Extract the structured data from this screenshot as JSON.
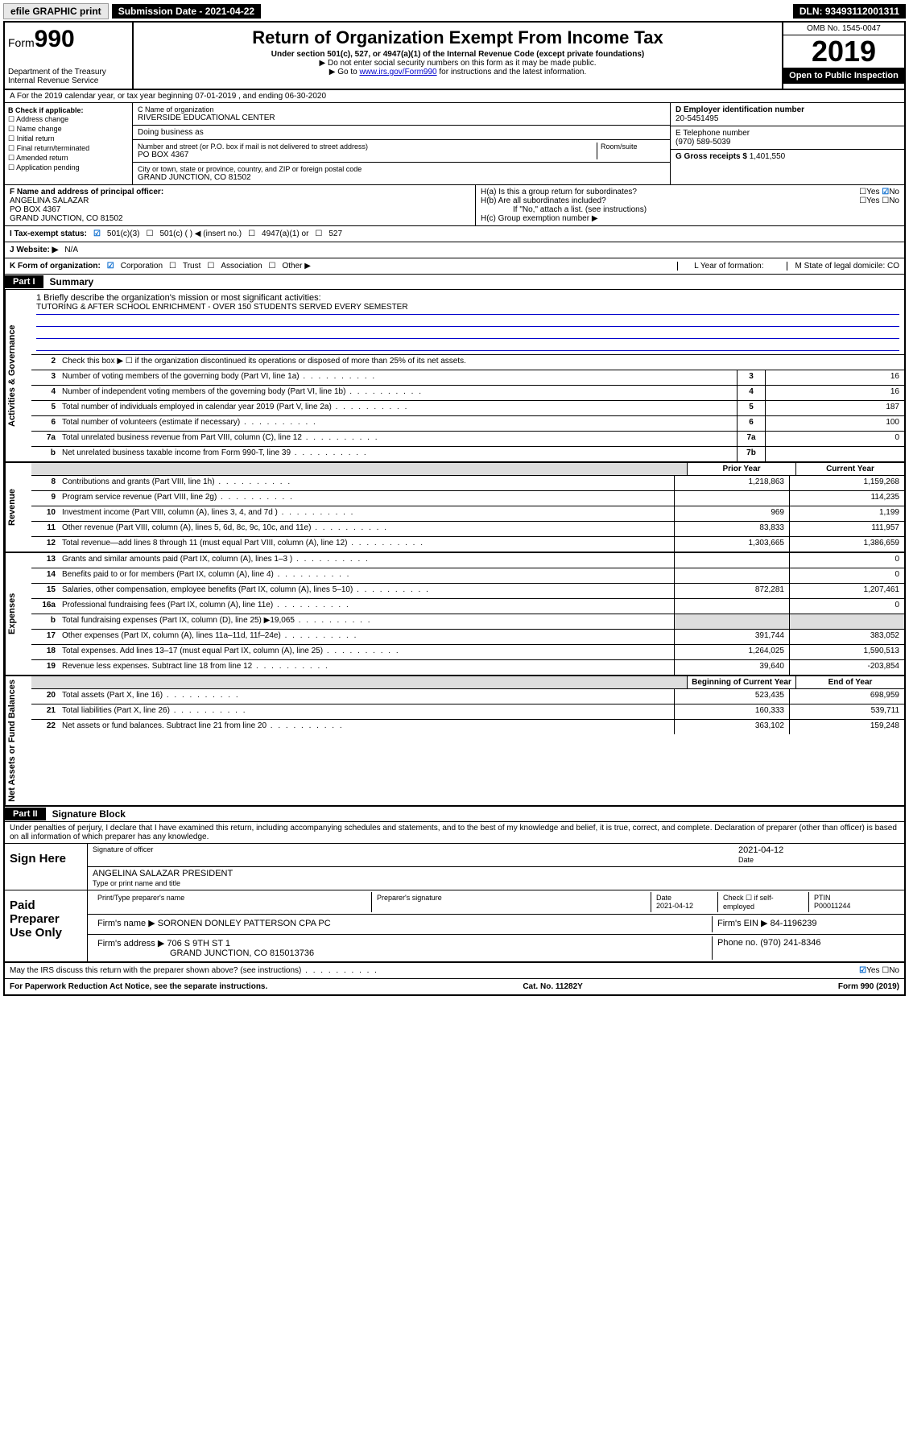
{
  "topbar": {
    "efile": "efile GRAPHIC print",
    "submission": "Submission Date - 2021-04-22",
    "dln": "DLN: 93493112001311"
  },
  "header": {
    "form": "Form",
    "formnum": "990",
    "dept": "Department of the Treasury\nInternal Revenue Service",
    "title": "Return of Organization Exempt From Income Tax",
    "sub1": "Under section 501(c), 527, or 4947(a)(1) of the Internal Revenue Code (except private foundations)",
    "sub2": "▶ Do not enter social security numbers on this form as it may be made public.",
    "sub3_pre": "▶ Go to ",
    "sub3_link": "www.irs.gov/Form990",
    "sub3_post": " for instructions and the latest information.",
    "omb": "OMB No. 1545-0047",
    "year": "2019",
    "open": "Open to Public Inspection"
  },
  "rowA": "A For the 2019 calendar year, or tax year beginning 07-01-2019   , and ending 06-30-2020",
  "boxB": {
    "title": "B Check if applicable:",
    "items": [
      "Address change",
      "Name change",
      "Initial return",
      "Final return/terminated",
      "Amended return",
      "Application pending"
    ]
  },
  "boxC": {
    "label_name": "C Name of organization",
    "name": "RIVERSIDE EDUCATIONAL CENTER",
    "dba": "Doing business as",
    "addr_label": "Number and street (or P.O. box if mail is not delivered to street address)",
    "room": "Room/suite",
    "addr": "PO BOX 4367",
    "city_label": "City or town, state or province, country, and ZIP or foreign postal code",
    "city": "GRAND JUNCTION, CO  81502"
  },
  "boxD": {
    "label": "D Employer identification number",
    "val": "20-5451495"
  },
  "boxE": {
    "label": "E Telephone number",
    "val": "(970) 589-5039"
  },
  "boxG": {
    "label": "G Gross receipts $",
    "val": "1,401,550"
  },
  "boxF": {
    "label": "F Name and address of principal officer:",
    "name": "ANGELINA SALAZAR",
    "addr": "PO BOX 4367",
    "city": "GRAND JUNCTION, CO  81502"
  },
  "boxH": {
    "a": "H(a)  Is this a group return for subordinates?",
    "b": "H(b)  Are all subordinates included?",
    "note": "If \"No,\" attach a list. (see instructions)",
    "c": "H(c)  Group exemption number ▶"
  },
  "rowI": {
    "label": "I   Tax-exempt status:",
    "opts": [
      "501(c)(3)",
      "501(c) (  ) ◀ (insert no.)",
      "4947(a)(1) or",
      "527"
    ]
  },
  "rowJ": {
    "label": "J   Website: ▶",
    "val": "N/A"
  },
  "rowK": {
    "label": "K Form of organization:",
    "opts": [
      "Corporation",
      "Trust",
      "Association",
      "Other ▶"
    ],
    "L": "L Year of formation:",
    "M": "M State of legal domicile: CO"
  },
  "part1": {
    "header": "Part I",
    "title": "Summary",
    "q1": "1  Briefly describe the organization's mission or most significant activities:",
    "mission": "TUTORING & AFTER SCHOOL ENRICHMENT - OVER 150 STUDENTS SERVED EVERY SEMESTER",
    "q2": "Check this box ▶ ☐  if the organization discontinued its operations or disposed of more than 25% of its net assets."
  },
  "sideLabels": {
    "gov": "Activities & Governance",
    "rev": "Revenue",
    "exp": "Expenses",
    "net": "Net Assets or Fund Balances"
  },
  "govLines": [
    {
      "n": "3",
      "d": "Number of voting members of the governing body (Part VI, line 1a)",
      "b": "3",
      "v": "16"
    },
    {
      "n": "4",
      "d": "Number of independent voting members of the governing body (Part VI, line 1b)",
      "b": "4",
      "v": "16"
    },
    {
      "n": "5",
      "d": "Total number of individuals employed in calendar year 2019 (Part V, line 2a)",
      "b": "5",
      "v": "187"
    },
    {
      "n": "6",
      "d": "Total number of volunteers (estimate if necessary)",
      "b": "6",
      "v": "100"
    },
    {
      "n": "7a",
      "d": "Total unrelated business revenue from Part VIII, column (C), line 12",
      "b": "7a",
      "v": "0"
    },
    {
      "n": "b",
      "d": "Net unrelated business taxable income from Form 990-T, line 39",
      "b": "7b",
      "v": ""
    }
  ],
  "colHeaders": {
    "prior": "Prior Year",
    "current": "Current Year"
  },
  "revLines": [
    {
      "n": "8",
      "d": "Contributions and grants (Part VIII, line 1h)",
      "p": "1,218,863",
      "c": "1,159,268"
    },
    {
      "n": "9",
      "d": "Program service revenue (Part VIII, line 2g)",
      "p": "",
      "c": "114,235"
    },
    {
      "n": "10",
      "d": "Investment income (Part VIII, column (A), lines 3, 4, and 7d )",
      "p": "969",
      "c": "1,199"
    },
    {
      "n": "11",
      "d": "Other revenue (Part VIII, column (A), lines 5, 6d, 8c, 9c, 10c, and 11e)",
      "p": "83,833",
      "c": "111,957"
    },
    {
      "n": "12",
      "d": "Total revenue—add lines 8 through 11 (must equal Part VIII, column (A), line 12)",
      "p": "1,303,665",
      "c": "1,386,659"
    }
  ],
  "expLines": [
    {
      "n": "13",
      "d": "Grants and similar amounts paid (Part IX, column (A), lines 1–3 )",
      "p": "",
      "c": "0"
    },
    {
      "n": "14",
      "d": "Benefits paid to or for members (Part IX, column (A), line 4)",
      "p": "",
      "c": "0"
    },
    {
      "n": "15",
      "d": "Salaries, other compensation, employee benefits (Part IX, column (A), lines 5–10)",
      "p": "872,281",
      "c": "1,207,461"
    },
    {
      "n": "16a",
      "d": "Professional fundraising fees (Part IX, column (A), line 11e)",
      "p": "",
      "c": "0"
    },
    {
      "n": "b",
      "d": "Total fundraising expenses (Part IX, column (D), line 25) ▶19,065",
      "p": "grey",
      "c": "grey"
    },
    {
      "n": "17",
      "d": "Other expenses (Part IX, column (A), lines 11a–11d, 11f–24e)",
      "p": "391,744",
      "c": "383,052"
    },
    {
      "n": "18",
      "d": "Total expenses. Add lines 13–17 (must equal Part IX, column (A), line 25)",
      "p": "1,264,025",
      "c": "1,590,513"
    },
    {
      "n": "19",
      "d": "Revenue less expenses. Subtract line 18 from line 12",
      "p": "39,640",
      "c": "-203,854"
    }
  ],
  "netHeaders": {
    "prior": "Beginning of Current Year",
    "current": "End of Year"
  },
  "netLines": [
    {
      "n": "20",
      "d": "Total assets (Part X, line 16)",
      "p": "523,435",
      "c": "698,959"
    },
    {
      "n": "21",
      "d": "Total liabilities (Part X, line 26)",
      "p": "160,333",
      "c": "539,711"
    },
    {
      "n": "22",
      "d": "Net assets or fund balances. Subtract line 21 from line 20",
      "p": "363,102",
      "c": "159,248"
    }
  ],
  "part2": {
    "header": "Part II",
    "title": "Signature Block",
    "decl": "Under penalties of perjury, I declare that I have examined this return, including accompanying schedules and statements, and to the best of my knowledge and belief, it is true, correct, and complete. Declaration of preparer (other than officer) is based on all information of which preparer has any knowledge."
  },
  "sign": {
    "label": "Sign Here",
    "date": "2021-04-12",
    "sig_label": "Signature of officer",
    "date_label": "Date",
    "name": "ANGELINA SALAZAR  PRESIDENT",
    "name_label": "Type or print name and title"
  },
  "paid": {
    "label": "Paid Preparer Use Only",
    "h1": "Print/Type preparer's name",
    "h2": "Preparer's signature",
    "h3": "Date",
    "date": "2021-04-12",
    "check": "Check ☐ if self-employed",
    "ptin_label": "PTIN",
    "ptin": "P00011244",
    "firm_label": "Firm's name    ▶",
    "firm": "SORONEN DONLEY PATTERSON CPA PC",
    "ein_label": "Firm's EIN ▶",
    "ein": "84-1196239",
    "addr_label": "Firm's address ▶",
    "addr": "706 S 9TH ST 1",
    "city": "GRAND JUNCTION, CO  815013736",
    "phone_label": "Phone no.",
    "phone": "(970) 241-8346"
  },
  "footer": {
    "q": "May the IRS discuss this return with the preparer shown above? (see instructions)",
    "yes": "Yes",
    "no": "No",
    "paperwork": "For Paperwork Reduction Act Notice, see the separate instructions.",
    "cat": "Cat. No. 11282Y",
    "form": "Form 990 (2019)"
  }
}
